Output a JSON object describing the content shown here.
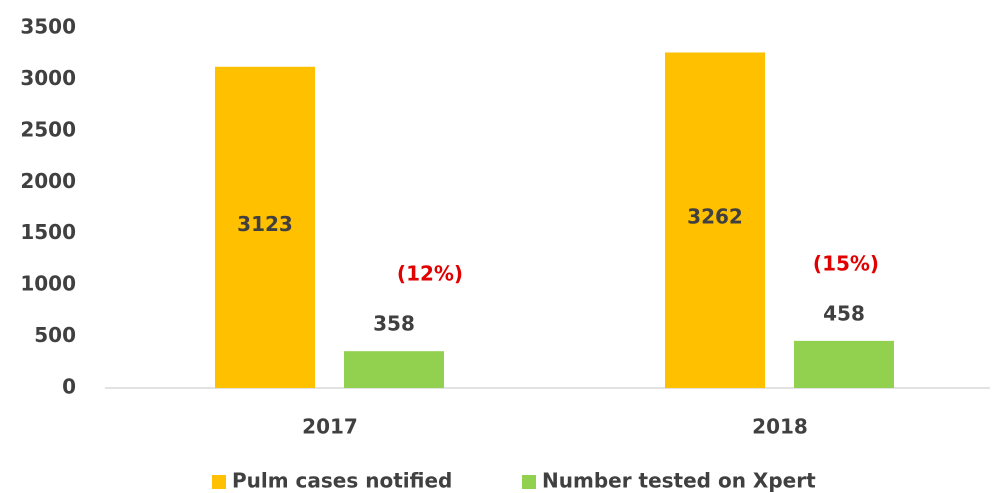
{
  "chart_data": {
    "type": "bar",
    "categories": [
      "2017",
      "2018"
    ],
    "series": [
      {
        "name": "Pulm cases notified",
        "color": "#FFC000",
        "values": [
          3123,
          3262
        ]
      },
      {
        "name": "Number tested on Xpert",
        "color": "#92D050",
        "values": [
          358,
          458
        ]
      }
    ],
    "annotations": [
      "(12%)",
      "(15%)"
    ],
    "ylim": [
      0,
      3500
    ],
    "yticks": [
      0,
      500,
      1000,
      1500,
      2000,
      2500,
      3000,
      3500
    ],
    "grid": false,
    "legend": "bottom"
  }
}
